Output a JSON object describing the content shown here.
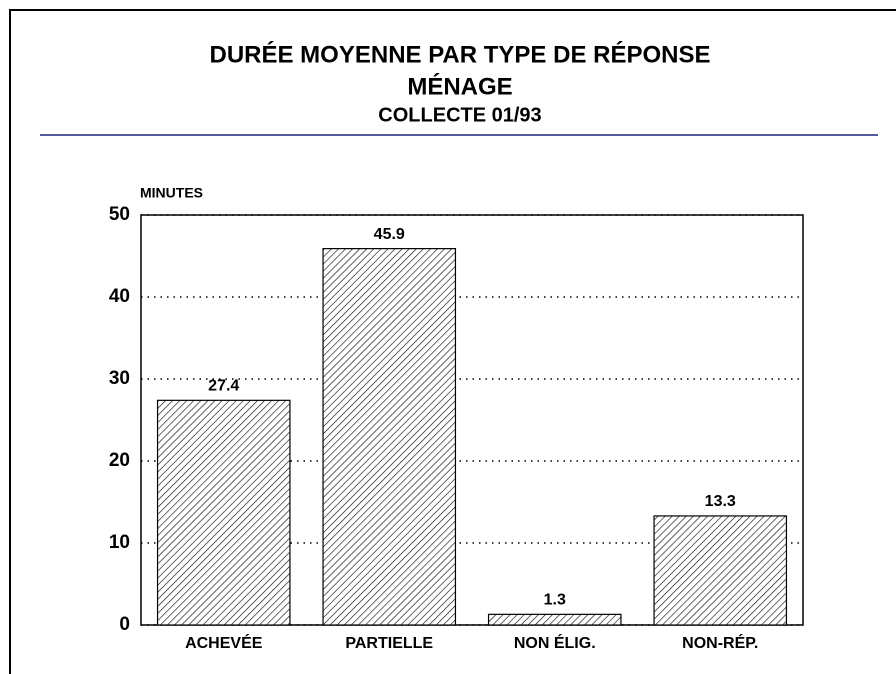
{
  "chart_data": {
    "type": "bar",
    "title": "DURÉE MOYENNE PAR TYPE DE RÉPONSE",
    "subtitle": [
      "MÉNAGE",
      "COLLECTE 01/93"
    ],
    "y_label": "MINUTES",
    "categories": [
      "ACHEVÉE",
      "PARTIELLE",
      "NON ÉLIG.",
      "NON-RÉP."
    ],
    "values": [
      27.4,
      45.9,
      1.3,
      13.3
    ],
    "color": "#000000",
    "ylim": [
      0,
      50
    ],
    "yticks": [
      0,
      10,
      20,
      30,
      40,
      50
    ],
    "grid": true
  }
}
